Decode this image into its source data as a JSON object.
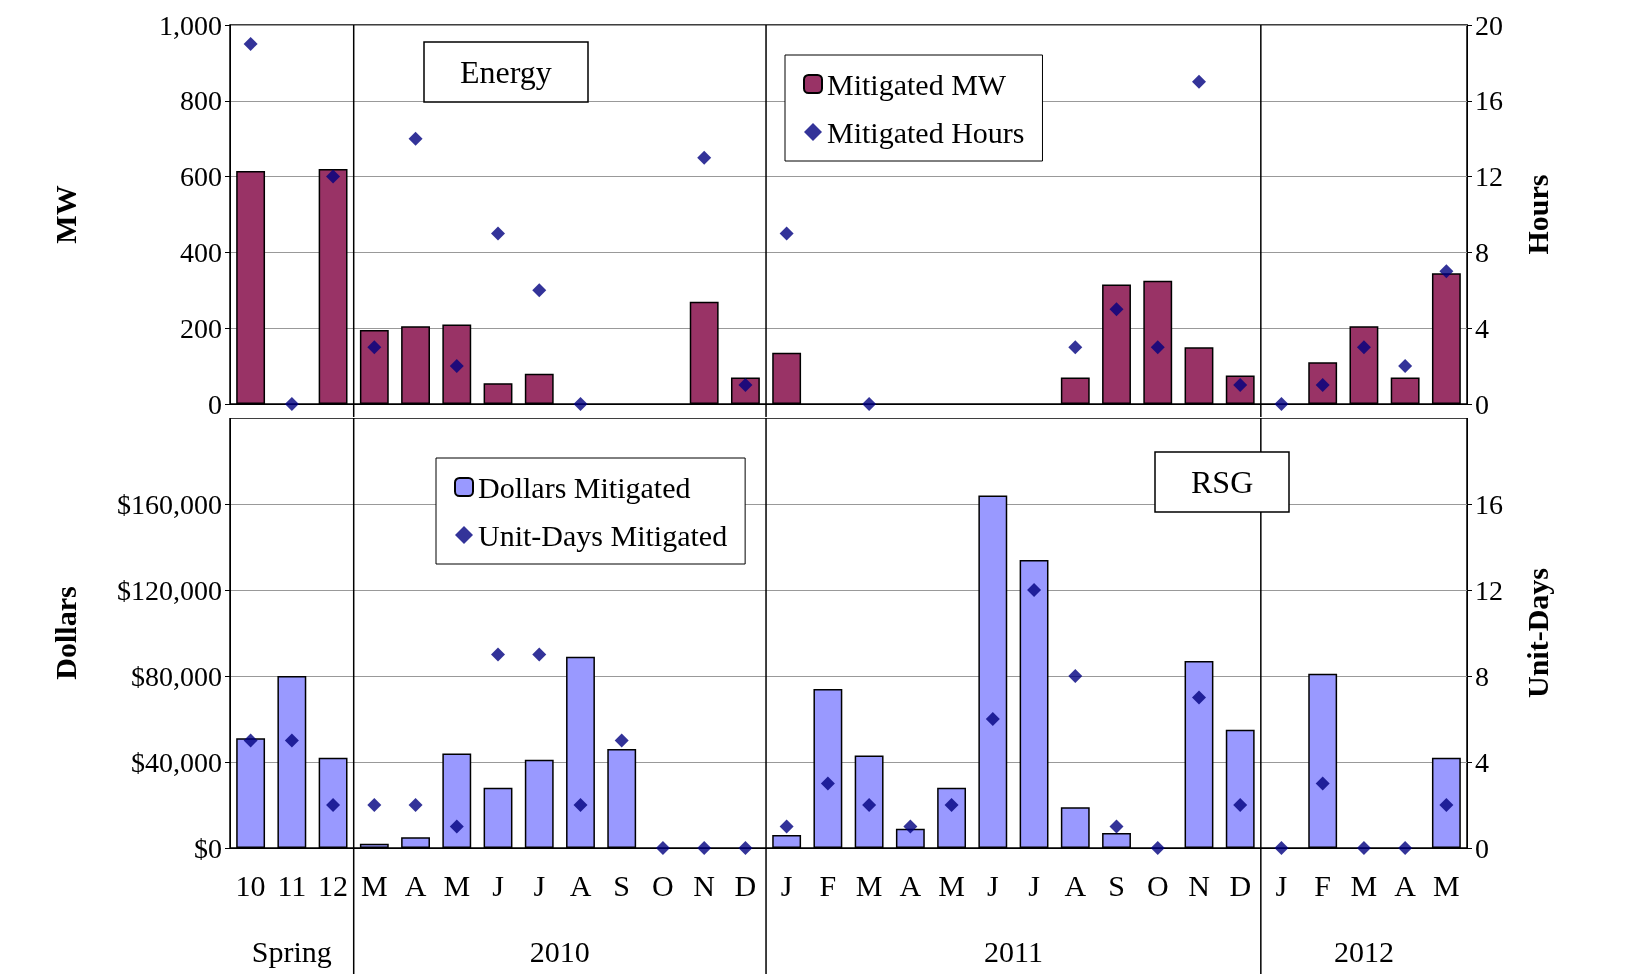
{
  "chart_data": [
    {
      "type": "bar",
      "title": "Energy",
      "categories": [
        null,
        null,
        null,
        null,
        null,
        null,
        null,
        null,
        null,
        null,
        null,
        null,
        null,
        null,
        null,
        null,
        null,
        null,
        null,
        null,
        null,
        null,
        null,
        null,
        null,
        null,
        null,
        null,
        null,
        null
      ],
      "series": [
        {
          "name": "Mitigated MW",
          "color": "#993366",
          "values": [
            615,
            null,
            620,
            195,
            205,
            210,
            55,
            80,
            null,
            null,
            null,
            270,
            70,
            135,
            null,
            null,
            null,
            null,
            null,
            null,
            70,
            315,
            325,
            150,
            75,
            null,
            110,
            205,
            70,
            345
          ]
        },
        {
          "name": "Mitigated Hours",
          "type": "scatter",
          "axis": "y2",
          "color": "#000080",
          "values": [
            19,
            0,
            12,
            3,
            14,
            2,
            9,
            6,
            0,
            null,
            null,
            13,
            1,
            9,
            null,
            0,
            null,
            null,
            null,
            null,
            3,
            5,
            3,
            17,
            1,
            0,
            1,
            3,
            2,
            7
          ]
        }
      ],
      "ylabel": "MW",
      "y2label": "Hours",
      "ylim": [
        0,
        1000
      ],
      "yticks": [
        0,
        200,
        400,
        600,
        800,
        {
          "value": 1000,
          "label": "1,000"
        }
      ],
      "y2lim": [
        0,
        20
      ],
      "y2ticks": [
        0,
        4,
        8,
        12,
        16,
        20
      ],
      "grid": "y",
      "legend": "top right",
      "marker": "diamond",
      "tick_labels": "y"
    },
    {
      "type": "bar",
      "title": "RSG",
      "categories": [
        "10",
        "11",
        "12",
        "M",
        "A",
        "M",
        "J",
        "J",
        "A",
        "S",
        "O",
        "N",
        "D",
        "J",
        "F",
        "M",
        "A",
        "M",
        "J",
        "J",
        "A",
        "S",
        "O",
        "N",
        "D",
        "J",
        "F",
        "M",
        "A",
        "M"
      ],
      "series": [
        {
          "name": "Dollars Mitigated",
          "color": "#9999ff",
          "values": [
            51000,
            80000,
            42000,
            2000,
            5000,
            44000,
            28000,
            41000,
            89000,
            46000,
            null,
            null,
            null,
            6000,
            74000,
            43000,
            9000,
            28000,
            164000,
            134000,
            19000,
            7000,
            null,
            87000,
            55000,
            null,
            81000,
            null,
            null,
            42000
          ]
        },
        {
          "name": "Unit-Days Mitigated",
          "type": "scatter",
          "axis": "y2",
          "color": "#000080",
          "values": [
            5,
            5,
            2,
            2,
            2,
            1,
            9,
            9,
            2,
            5,
            0,
            0,
            0,
            1,
            3,
            2,
            1,
            2,
            6,
            12,
            8,
            1,
            0,
            7,
            2,
            0,
            3,
            0,
            0,
            2
          ]
        }
      ],
      "ylabel": "Dollars",
      "y2label": "Unit-Days",
      "ylim": [
        0,
        200000
      ],
      "yticks": [
        {
          "value": 0,
          "label": "$0"
        },
        {
          "value": 40000,
          "label": "$40,000"
        },
        {
          "value": 80000,
          "label": "$80,000"
        },
        {
          "value": 120000,
          "label": "$120,000"
        },
        {
          "value": 160000,
          "label": "$160,000"
        }
      ],
      "y2lim": [
        0,
        20
      ],
      "y2ticks": [
        0,
        4,
        8,
        12,
        16
      ],
      "grid": "y",
      "legend": "top left",
      "marker": "diamond",
      "annotations": [
        "Spring",
        "2010",
        "2011",
        "2012"
      ]
    }
  ]
}
